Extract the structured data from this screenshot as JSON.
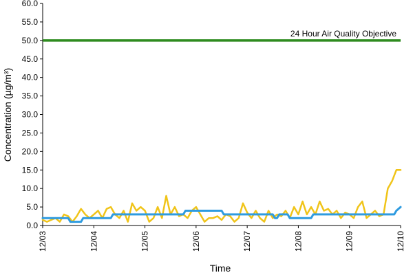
{
  "chart_data": {
    "type": "line",
    "title": "",
    "xlabel": "Time",
    "ylabel": "Concentration (µg/m³)",
    "ylim": [
      0,
      60
    ],
    "y_ticks": [
      "0.0",
      "5.0",
      "10.0",
      "15.0",
      "20.0",
      "25.0",
      "30.0",
      "35.0",
      "40.0",
      "45.0",
      "50.0",
      "55.0",
      "60.0"
    ],
    "x_ticks": [
      "12/03",
      "12/04",
      "12/05",
      "12/06",
      "12/07",
      "12/08",
      "12/09",
      "12/10"
    ],
    "xlim": [
      "12/03 00:00",
      "12/10 00:00"
    ],
    "grid": false,
    "legend": "none",
    "objective_label": "24 Hour Air Quality Objective",
    "series": [
      {
        "role": "hourly",
        "color": "#f0c419",
        "x": [
          "12/03 00:00",
          "12/03 02:00",
          "12/03 04:00",
          "12/03 06:00",
          "12/03 08:00",
          "12/03 10:00",
          "12/03 12:00",
          "12/03 14:00",
          "12/03 16:00",
          "12/03 18:00",
          "12/03 20:00",
          "12/03 22:00",
          "12/04 00:00",
          "12/04 02:00",
          "12/04 04:00",
          "12/04 06:00",
          "12/04 08:00",
          "12/04 10:00",
          "12/04 12:00",
          "12/04 14:00",
          "12/04 16:00",
          "12/04 18:00",
          "12/04 20:00",
          "12/04 22:00",
          "12/05 00:00",
          "12/05 02:00",
          "12/05 04:00",
          "12/05 06:00",
          "12/05 08:00",
          "12/05 10:00",
          "12/05 12:00",
          "12/05 14:00",
          "12/05 16:00",
          "12/05 18:00",
          "12/05 20:00",
          "12/05 22:00",
          "12/06 00:00",
          "12/06 02:00",
          "12/06 04:00",
          "12/06 06:00",
          "12/06 08:00",
          "12/06 10:00",
          "12/06 12:00",
          "12/06 14:00",
          "12/06 16:00",
          "12/06 18:00",
          "12/06 20:00",
          "12/06 22:00",
          "12/07 00:00",
          "12/07 02:00",
          "12/07 04:00",
          "12/07 06:00",
          "12/07 08:00",
          "12/07 10:00",
          "12/07 12:00",
          "12/07 14:00",
          "12/07 16:00",
          "12/07 18:00",
          "12/07 20:00",
          "12/07 22:00",
          "12/08 00:00",
          "12/08 02:00",
          "12/08 04:00",
          "12/08 06:00",
          "12/08 08:00",
          "12/08 10:00",
          "12/08 12:00",
          "12/08 14:00",
          "12/08 16:00",
          "12/08 18:00",
          "12/08 20:00",
          "12/08 22:00",
          "12/09 00:00",
          "12/09 02:00",
          "12/09 04:00",
          "12/09 06:00",
          "12/09 08:00",
          "12/09 10:00",
          "12/09 12:00",
          "12/09 14:00",
          "12/09 16:00",
          "12/09 18:00",
          "12/09 20:00",
          "12/09 22:00",
          "12/10 00:00"
        ],
        "values": [
          1.5,
          1.0,
          1.5,
          2.0,
          1.0,
          3.0,
          2.5,
          1.0,
          2.5,
          4.5,
          3.0,
          2.0,
          3.0,
          4.0,
          2.0,
          4.5,
          5.0,
          3.0,
          2.0,
          4.0,
          1.0,
          6.0,
          4.0,
          5.0,
          4.0,
          1.0,
          2.0,
          5.0,
          2.0,
          8.0,
          3.0,
          5.0,
          2.5,
          3.0,
          2.0,
          4.0,
          5.0,
          3.0,
          1.0,
          2.0,
          2.0,
          2.5,
          1.5,
          3.0,
          2.5,
          1.0,
          2.0,
          6.0,
          3.5,
          2.0,
          4.0,
          2.0,
          1.0,
          4.0,
          2.0,
          3.0,
          2.5,
          4.0,
          2.0,
          5.0,
          3.0,
          6.5,
          3.0,
          5.0,
          3.0,
          6.5,
          4.0,
          4.5,
          3.0,
          4.0,
          2.0,
          3.5,
          3.0,
          2.0,
          5.0,
          6.5,
          2.0,
          3.0,
          4.0,
          2.5,
          3.0,
          10.0,
          12.0,
          15.0,
          15.0
        ]
      },
      {
        "role": "24h-rolling",
        "color": "#2e9be0",
        "x": [
          "12/03 00:00",
          "12/03 12:00",
          "12/03 13:00",
          "12/03 18:00",
          "12/03 19:00",
          "12/04 08:00",
          "12/04 09:00",
          "12/05 18:00",
          "12/05 19:00",
          "12/06 12:00",
          "12/06 13:00",
          "12/07 12:00",
          "12/07 13:00",
          "12/07 14:00",
          "12/07 15:00",
          "12/07 19:00",
          "12/07 20:00",
          "12/08 06:00",
          "12/08 07:00",
          "12/09 21:00",
          "12/09 22:00",
          "12/10 00:00"
        ],
        "values": [
          2.0,
          2.0,
          1.0,
          1.0,
          2.0,
          2.0,
          3.0,
          3.0,
          4.0,
          4.0,
          3.0,
          3.0,
          2.0,
          2.0,
          3.0,
          3.0,
          2.0,
          2.0,
          3.0,
          3.0,
          4.0,
          5.0
        ]
      }
    ],
    "reference_lines": [
      {
        "y": 50,
        "color": "#2e8b1f"
      }
    ]
  }
}
